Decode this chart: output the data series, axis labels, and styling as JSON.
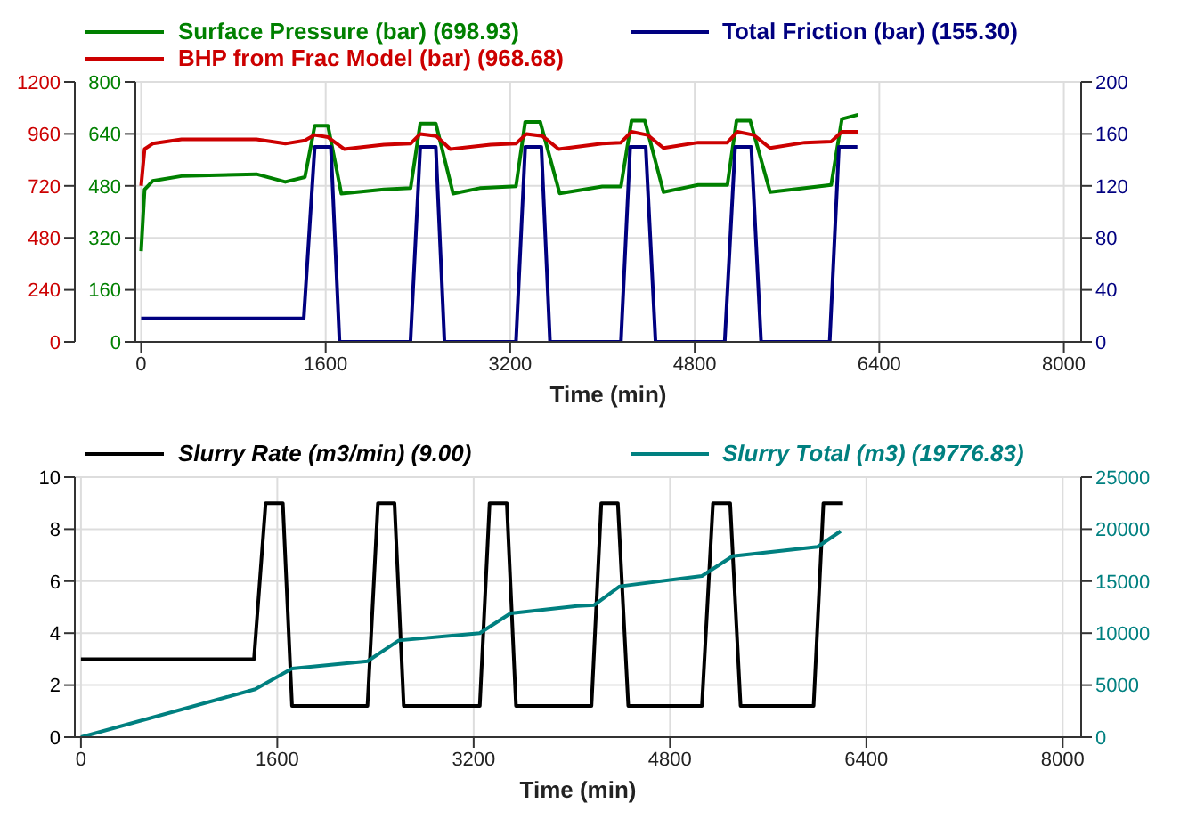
{
  "chart_data": [
    {
      "type": "line",
      "xlabel": "Time (min)",
      "legend": "top",
      "grid": true,
      "xlim": [
        -50,
        8150
      ],
      "xticks": [
        0,
        1600,
        3200,
        4800,
        6400,
        8000
      ],
      "ylim": [
        0,
        800
      ],
      "yticks": [
        0,
        160,
        320,
        480,
        640,
        800
      ],
      "y2lim": [
        0,
        200
      ],
      "y2ticks": [
        0,
        40,
        80,
        120,
        160,
        200
      ],
      "y3lim": [
        0,
        1200
      ],
      "y3ticks": [
        0,
        240,
        480,
        720,
        960,
        1200
      ],
      "series": [
        {
          "name": "Surface Pressure  (bar) (698.93)",
          "color": "#008000",
          "x": [
            0,
            30,
            100,
            350,
            1000,
            1250,
            1420,
            1505,
            1620,
            1736,
            2105,
            2336,
            2420,
            2555,
            2705,
            2936,
            3250,
            3330,
            3460,
            3629,
            3998,
            4160,
            4252,
            4367,
            4529,
            4829,
            5083,
            5162,
            5281,
            5453,
            5753,
            5983,
            6076,
            6215
          ],
          "values": [
            279,
            469,
            495,
            510,
            516,
            492,
            507,
            665,
            665,
            456,
            469,
            473,
            672,
            672,
            456,
            473,
            479,
            677,
            677,
            457,
            478,
            478,
            681,
            681,
            461,
            483,
            483,
            681,
            681,
            461,
            473,
            483,
            686,
            699
          ]
        },
        {
          "name": "Total Friction  (bar) (155.30)",
          "color": "#000080",
          "axis": "y2",
          "x": [
            0,
            1410,
            1505,
            1645,
            1720,
            2335,
            2420,
            2555,
            2630,
            3250,
            3330,
            3470,
            3545,
            4160,
            4240,
            4375,
            4460,
            5060,
            5150,
            5290,
            5375,
            5970,
            6050,
            6210
          ],
          "values": [
            18,
            18,
            150,
            150,
            0,
            0,
            150,
            150,
            0,
            0,
            150,
            150,
            0,
            0,
            150,
            150,
            0,
            0,
            150,
            150,
            0,
            0,
            150,
            150
          ]
        },
        {
          "name": "BHP from Frac Model  (bar) (968.68)",
          "color": "#cc0000",
          "axis": "y3",
          "x": [
            0,
            30,
            100,
            350,
            1000,
            1250,
            1420,
            1505,
            1620,
            1760,
            2105,
            2336,
            2420,
            2560,
            2680,
            3030,
            3250,
            3340,
            3480,
            3620,
            3998,
            4160,
            4252,
            4390,
            4529,
            4829,
            5083,
            5170,
            5310,
            5453,
            5753,
            5983,
            6076,
            6215
          ],
          "values": [
            720,
            890,
            915,
            935,
            935,
            915,
            930,
            955,
            945,
            890,
            910,
            915,
            960,
            950,
            890,
            910,
            915,
            960,
            950,
            890,
            915,
            920,
            970,
            955,
            895,
            920,
            920,
            970,
            955,
            895,
            920,
            925,
            970,
            970
          ]
        }
      ]
    },
    {
      "type": "line",
      "xlabel": "Time (min)",
      "legend": "top",
      "grid": true,
      "xlim": [
        -50,
        8150
      ],
      "xticks": [
        0,
        1600,
        3200,
        4800,
        6400,
        8000
      ],
      "ylim": [
        0,
        10
      ],
      "yticks": [
        0,
        2,
        4,
        6,
        8,
        10
      ],
      "y2lim": [
        0,
        25000
      ],
      "y2ticks": [
        0,
        5000,
        10000,
        15000,
        20000,
        25000
      ],
      "series": [
        {
          "name": "Slurry Rate  (m3/min) (9.00)",
          "color": "#000000",
          "x": [
            0,
            1410,
            1505,
            1645,
            1720,
            2335,
            2420,
            2555,
            2630,
            3250,
            3330,
            3470,
            3545,
            4160,
            4240,
            4375,
            4460,
            5060,
            5150,
            5290,
            5375,
            5970,
            6050,
            6210
          ],
          "values": [
            3,
            3,
            9,
            9,
            1.2,
            1.2,
            9,
            9,
            1.2,
            1.2,
            9,
            9,
            1.2,
            1.2,
            9,
            9,
            1.2,
            1.2,
            9,
            9,
            1.2,
            1.2,
            9,
            9
          ]
        },
        {
          "name": "Slurry Total  (m3) (19776.83)",
          "color": "#008080",
          "axis": "y2",
          "x": [
            0,
            1420,
            1720,
            2335,
            2590,
            3250,
            3500,
            4044,
            4183,
            4390,
            5060,
            5310,
            6003,
            6190
          ],
          "values": [
            0,
            4600,
            6600,
            7300,
            9300,
            10000,
            11900,
            12600,
            12700,
            14500,
            15500,
            17400,
            18300,
            19800
          ]
        }
      ]
    }
  ]
}
